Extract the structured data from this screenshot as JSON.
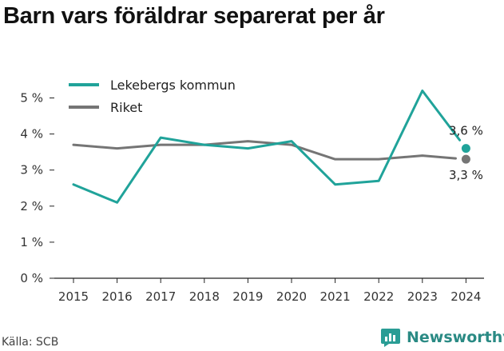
{
  "title": "Barn vars föräldrar separerat per år",
  "source": "Källa: SCB",
  "brand": {
    "name": "Newsworthy",
    "icon": "newsworthy-logo-icon",
    "color": "#2a9d95"
  },
  "chart_data": {
    "type": "line",
    "title": "Barn vars föräldrar separerat per år",
    "x": [
      "2015",
      "2016",
      "2017",
      "2018",
      "2019",
      "2020",
      "2021",
      "2022",
      "2023",
      "2024"
    ],
    "ylim": [
      0,
      5
    ],
    "yticks": [
      0,
      1,
      2,
      3,
      4,
      5
    ],
    "ytick_labels": [
      "0 %",
      "1 %",
      "2 %",
      "3 %",
      "4 %",
      "5 %"
    ],
    "grid": false,
    "legend": "top-left",
    "series": [
      {
        "name": "Lekebergs kommun",
        "color": "#20a39a",
        "values": [
          2.6,
          2.1,
          3.9,
          3.7,
          3.6,
          3.8,
          2.6,
          2.7,
          5.2,
          3.6
        ],
        "end_label": "3,6 %"
      },
      {
        "name": "Riket",
        "color": "#757575",
        "values": [
          3.7,
          3.6,
          3.7,
          3.7,
          3.8,
          3.7,
          3.3,
          3.3,
          3.4,
          3.3
        ],
        "end_label": "3,3 %"
      }
    ]
  }
}
